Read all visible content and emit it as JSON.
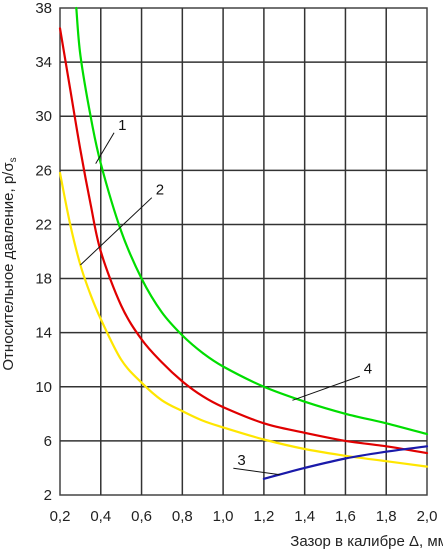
{
  "chart_data": {
    "type": "line",
    "title": "",
    "xlabel": "Зазор в калибре Δ, мм",
    "ylabel_main": "Относительное давление, p/σ",
    "ylabel_subscript": "s",
    "xlim": [
      0.2,
      2.0
    ],
    "ylim": [
      2,
      38
    ],
    "x_ticks": [
      "0,2",
      "0,4",
      "0,6",
      "0,8",
      "1,0",
      "1,2",
      "1,4",
      "1,6",
      "1,8",
      "2,0"
    ],
    "y_ticks": [
      "2",
      "6",
      "10",
      "14",
      "18",
      "22",
      "26",
      "30",
      "34",
      "38"
    ],
    "grid": true,
    "series": [
      {
        "name": "1",
        "color": "#e00000",
        "x": [
          0.2,
          0.25,
          0.3,
          0.35,
          0.4,
          0.5,
          0.6,
          0.7,
          0.8,
          0.9,
          1.0,
          1.2,
          1.4,
          1.6,
          1.8,
          2.0
        ],
        "y": [
          36.5,
          32.0,
          27.5,
          23.5,
          20.0,
          16.0,
          13.5,
          11.8,
          10.4,
          9.3,
          8.5,
          7.3,
          6.6,
          6.0,
          5.6,
          5.1
        ]
      },
      {
        "name": "2",
        "color": "#ffe600",
        "x": [
          0.2,
          0.25,
          0.3,
          0.35,
          0.4,
          0.5,
          0.6,
          0.7,
          0.8,
          0.9,
          1.0,
          1.2,
          1.4,
          1.6,
          1.8,
          2.0
        ],
        "y": [
          25.8,
          22.0,
          19.0,
          16.8,
          15.0,
          12.0,
          10.3,
          9.0,
          8.2,
          7.5,
          7.0,
          6.1,
          5.4,
          4.9,
          4.5,
          4.1
        ]
      },
      {
        "name": "3",
        "color": "#1a1aaa",
        "x": [
          1.2,
          1.4,
          1.6,
          1.8,
          2.0
        ],
        "y": [
          3.2,
          4.0,
          4.7,
          5.2,
          5.6
        ]
      },
      {
        "name": "4",
        "color": "#00dd00",
        "x": [
          0.28,
          0.3,
          0.35,
          0.4,
          0.5,
          0.6,
          0.7,
          0.8,
          0.9,
          1.0,
          1.2,
          1.4,
          1.6,
          1.8,
          2.0
        ],
        "y": [
          38.0,
          34.5,
          30.0,
          26.5,
          21.5,
          18.0,
          15.5,
          13.8,
          12.5,
          11.5,
          10.0,
          8.9,
          8.0,
          7.3,
          6.5
        ]
      }
    ],
    "annotations": [
      {
        "text": "1",
        "x": 0.475,
        "y": 29.0,
        "leader_x": 0.375,
        "leader_y": 26.5
      },
      {
        "text": "2",
        "x": 0.66,
        "y": 24.2,
        "leader_x": 0.3,
        "leader_y": 19.0
      },
      {
        "text": "3",
        "x": 1.06,
        "y": 4.2,
        "leader_x": 1.28,
        "leader_y": 3.5
      },
      {
        "text": "4",
        "x": 1.68,
        "y": 11.0,
        "leader_x": 1.34,
        "leader_y": 9.0
      }
    ]
  }
}
